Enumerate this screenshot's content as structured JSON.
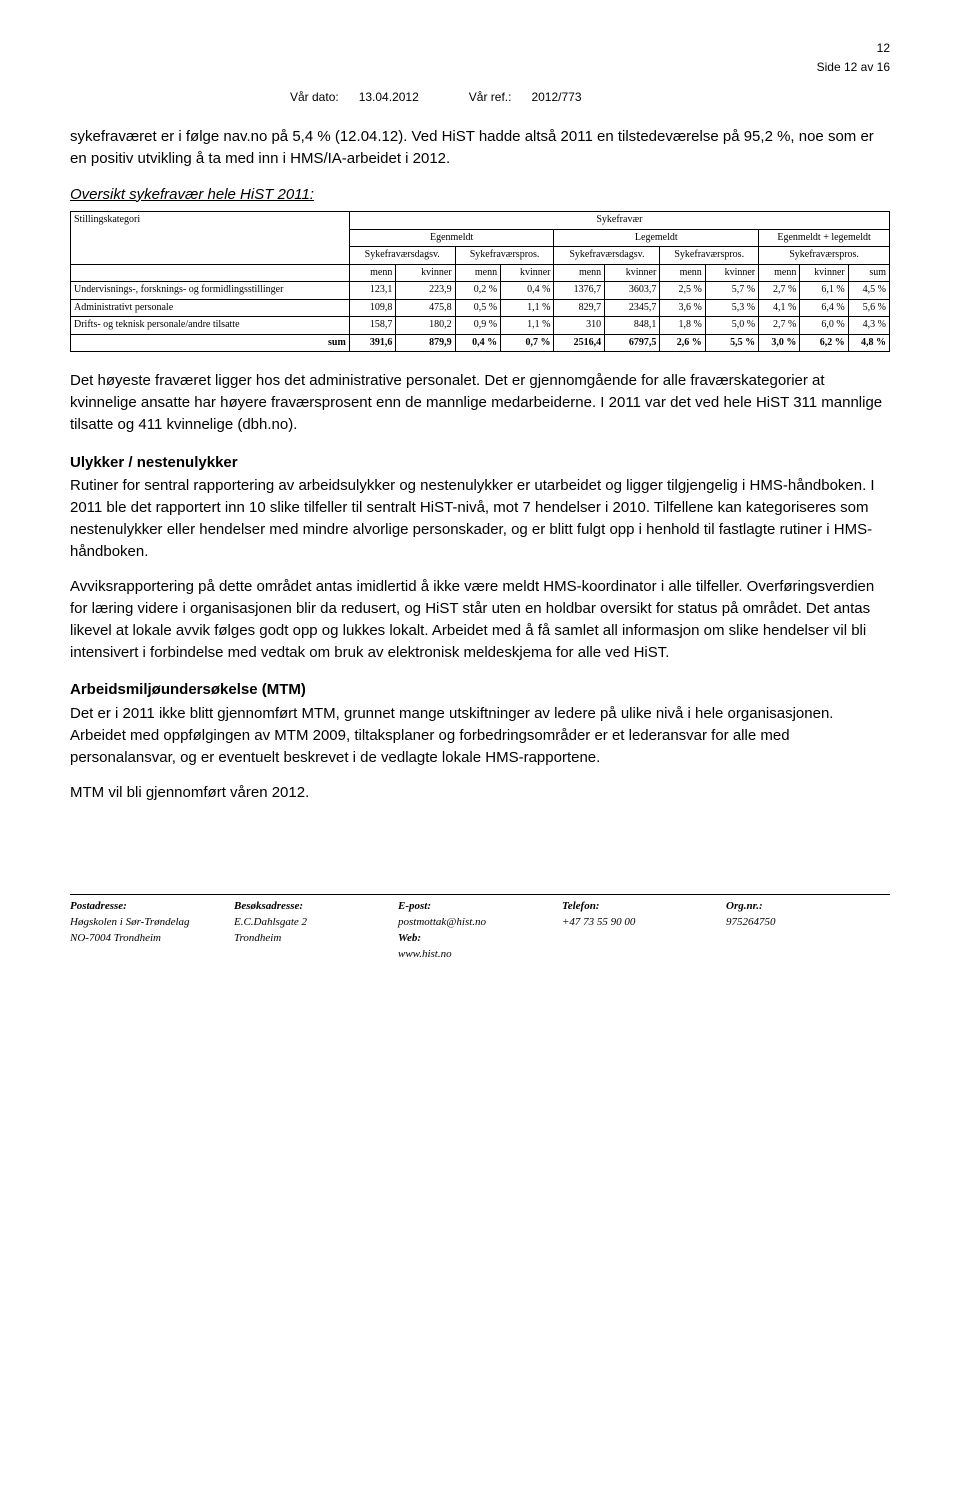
{
  "page": {
    "number": "12",
    "side_label": "Side 12 av 16",
    "header": {
      "var_dato_label": "Vår dato:",
      "var_dato_value": "13.04.2012",
      "var_ref_label": "Vår ref.:",
      "var_ref_value": "2012/773"
    }
  },
  "intro_paragraph": "sykefraværet er i følge nav.no på 5,4 % (12.04.12). Ved HiST hadde altså 2011 en tilstedeværelse på 95,2 %, noe som er en positiv utvikling å ta med inn i HMS/IA-arbeidet i 2012.",
  "table_heading": "Oversikt sykefravær hele HiST 2011:",
  "table": {
    "top_header": "Sykefravær",
    "category_label": "Stillingskategori",
    "group_headers": [
      "Egenmeldt",
      "Legemeldt",
      "Egenmeldt + legemeldt"
    ],
    "sub_headers": [
      "Sykefraværsdagsv.",
      "Sykefraværspros.",
      "Sykefraværsdagsv.",
      "Sykefraværspros.",
      "Sykefraværspros."
    ],
    "col_labels": [
      "menn",
      "kvinner",
      "menn",
      "kvinner",
      "menn",
      "kvinner",
      "menn",
      "kvinner",
      "menn",
      "kvinner",
      "sum"
    ],
    "rows": [
      {
        "label": "Undervisnings-, forsknings- og formidlingsstillinger",
        "cells": [
          "123,1",
          "223,9",
          "0,2 %",
          "0,4 %",
          "1376,7",
          "3603,7",
          "2,5 %",
          "5,7 %",
          "2,7 %",
          "6,1 %",
          "4,5 %"
        ]
      },
      {
        "label": "Administrativt personale",
        "cells": [
          "109,8",
          "475,8",
          "0,5 %",
          "1,1 %",
          "829,7",
          "2345,7",
          "3,6 %",
          "5,3 %",
          "4,1 %",
          "6,4 %",
          "5,6 %"
        ]
      },
      {
        "label": "Drifts- og teknisk personale/andre tilsatte",
        "cells": [
          "158,7",
          "180,2",
          "0,9 %",
          "1,1 %",
          "310",
          "848,1",
          "1,8 %",
          "5,0 %",
          "2,7 %",
          "6,0 %",
          "4,3 %"
        ]
      }
    ],
    "sum_label": "sum",
    "sum_row": [
      "391,6",
      "879,9",
      "0,4 %",
      "0,7 %",
      "2516,4",
      "6797,5",
      "2,6 %",
      "5,5 %",
      "3,0 %",
      "6,2 %",
      "4,8 %"
    ]
  },
  "paragraph_after_table": "Det høyeste fraværet ligger hos det administrative personalet. Det er gjennomgående for alle fraværskategorier at kvinnelige ansatte har høyere fraværsprosent enn de mannlige medarbeiderne. I 2011 var det ved hele HiST 311 mannlige tilsatte og 411 kvinnelige (dbh.no).",
  "ulykker": {
    "heading": "Ulykker / nestenulykker",
    "p1": "Rutiner for sentral rapportering av arbeidsulykker og nestenulykker er utarbeidet og ligger tilgjengelig i HMS-håndboken. I 2011 ble det rapportert inn 10 slike tilfeller til sentralt HiST-nivå, mot 7 hendelser i 2010. Tilfellene kan kategoriseres som nestenulykker eller hendelser med mindre alvorlige personskader, og er blitt fulgt opp i henhold til fastlagte rutiner i HMS-håndboken.",
    "p2": "Avviksrapportering på dette området antas imidlertid å ikke være meldt HMS-koordinator i alle tilfeller. Overføringsverdien for læring videre i organisasjonen blir da redusert, og HiST står uten en holdbar oversikt for status på området. Det antas likevel at lokale avvik følges godt opp og lukkes lokalt. Arbeidet med å få samlet all informasjon om slike hendelser vil bli intensivert i forbindelse med vedtak om bruk av elektronisk meldeskjema for alle ved HiST."
  },
  "mtm": {
    "heading": "Arbeidsmiljøundersøkelse (MTM)",
    "p1": "Det er i 2011 ikke blitt gjennomført MTM, grunnet mange utskiftninger av ledere på ulike nivå i hele organisasjonen. Arbeidet med oppfølgingen av MTM 2009, tiltaksplaner og forbedringsområder er et lederansvar for alle med personalansvar, og er eventuelt beskrevet i de vedlagte lokale HMS-rapportene.",
    "p2": "MTM vil bli gjennomført våren 2012."
  },
  "footer": {
    "cols": [
      {
        "head": "Postadresse:",
        "l1": "Høgskolen i Sør-Trøndelag",
        "l2": "NO-7004 Trondheim",
        "l3": ""
      },
      {
        "head": "Besøksadresse:",
        "l1": "E.C.Dahlsgate 2",
        "l2": "Trondheim",
        "l3": ""
      },
      {
        "head": "E-post:",
        "l1": "postmottak@hist.no",
        "l2": "Web:",
        "l3": "www.hist.no"
      },
      {
        "head": "Telefon:",
        "l1": "+47 73 55 90 00",
        "l2": "",
        "l3": ""
      },
      {
        "head": "Org.nr.:",
        "l1": "975264750",
        "l2": "",
        "l3": ""
      }
    ]
  }
}
